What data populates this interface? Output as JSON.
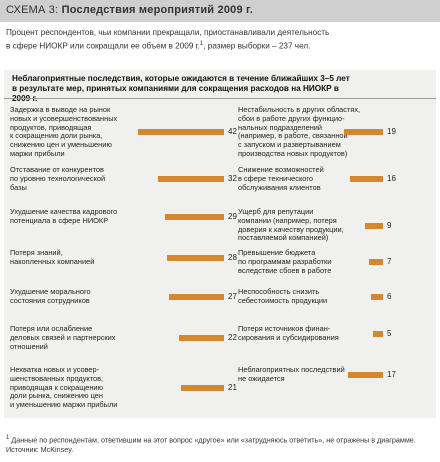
{
  "header": {
    "prefix": "СХЕМА 3:",
    "title": "Последствия мероприятий 2009 г."
  },
  "subtitle": {
    "line1": "Процент респондентов, чьи компании прекращали, приостанавливали деятельность",
    "line2": "в сфере НИОКР или сокращали ее объем в 2009 г.",
    "line2_sup": "1",
    "line2_end": ", размер выборки – 237 чел."
  },
  "panel": {
    "title_line1": "Неблагоприятные последствия, которые ожидаются в течение ближайших 3–5 лет",
    "title_line2": "в результате мер, принятых компаниями для сокращения расходов на НИОКР в 2009 г."
  },
  "chart_data": {
    "type": "bar",
    "title": "Неблагоприятные последствия, которые ожидаются в течение ближайших 3–5 лет в результате мер, принятых компаниями для сокращения расходов на НИОКР в 2009 г.",
    "unit": "% респондентов",
    "left_column": [
      {
        "lines": [
          "Задержка в выводе на рынок",
          "новых и усовершенствованных",
          "продуктов, приводящая",
          "к сокращению доли рынка,",
          "снижению цен и уменьшению",
          "маржи прибыли"
        ],
        "value": 42
      },
      {
        "lines": [
          "Отставание от конкурентов",
          "по уровню технологической",
          "базы"
        ],
        "value": 32
      },
      {
        "lines": [
          "Ухудшение качества кадрового",
          "потенциала в сфере НИОКР"
        ],
        "value": 29
      },
      {
        "lines": [
          "Потеря знаний,",
          "накопленных компанией"
        ],
        "value": 28
      },
      {
        "lines": [
          "Ухудшение морального",
          "состояния сотрудников"
        ],
        "value": 27
      },
      {
        "lines": [
          "Потеря или ослабление",
          "деловых связей и партнерских",
          "отношений"
        ],
        "value": 22
      },
      {
        "lines": [
          "Нехватка новых и усовер-",
          "шенствованных продуктов,",
          "приводящая к сокращению",
          "доли рынка, снижению цен",
          "и уменьшению маржи прибыли"
        ],
        "value": 21
      }
    ],
    "right_column": [
      {
        "lines": [
          "Нестабильность в других областях,",
          "сбои в работе других функцио-",
          "нальных подразделений",
          "(например, в работе, связанной",
          "с запуском и развертыванием",
          "производства новых продуктов)"
        ],
        "value": 19
      },
      {
        "lines": [
          "Снижение возможностей",
          "в сфере технического",
          "обслуживания клиентов"
        ],
        "value": 16
      },
      {
        "lines": [
          "Ущерб для репутации",
          "компании (например, потеря",
          "доверия к качеству продукции,",
          "поставляемой компанией)"
        ],
        "value": 9
      },
      {
        "lines": [
          "Превышение бюджета",
          "по программам разработки",
          "вследствие сбоев в работе"
        ],
        "value": 7
      },
      {
        "lines": [
          "Неспособность снизить",
          "себестоимость продукции"
        ],
        "value": 6
      },
      {
        "lines": [
          "Потеря источников финан-",
          "сирования и субсидирования"
        ],
        "value": 5
      },
      {
        "lines": [
          "Неблагоприятных последствий",
          "не ожидается"
        ],
        "value": 17
      }
    ]
  },
  "footnote": {
    "sup": "1",
    "text": " Данные по респондентам, ответившим на этот вопрос «другое» или «затрудняюсь ответить», не отражены в диаграмме.",
    "source": "Источник: McKinsey."
  },
  "colors": {
    "bar": "#d4872e",
    "panel": "#f0f0ee",
    "header": "#cfcfcf"
  }
}
